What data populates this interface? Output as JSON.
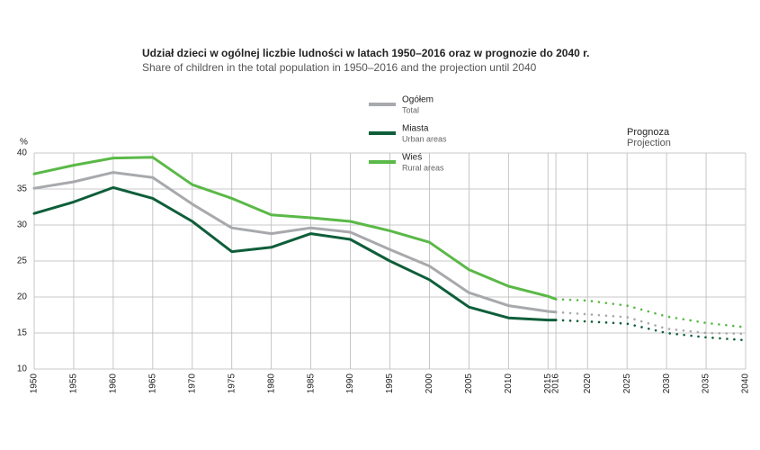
{
  "chart_data": {
    "type": "line",
    "title": "Udział dzieci w ogólnej liczbie ludności w latach 1950–2016 oraz w prognozie do 2040 r.",
    "subtitle": "Share of children in the total population in 1950–2016 and the projection until 2040",
    "y_unit": "%",
    "annotation": {
      "text": "Prognoza",
      "text_en": "Projection"
    },
    "x": [
      1950,
      1955,
      1960,
      1965,
      1970,
      1975,
      1980,
      1985,
      1990,
      1995,
      2000,
      2005,
      2010,
      2015,
      2016,
      2020,
      2025,
      2030,
      2035,
      2040
    ],
    "series": [
      {
        "name": "Ogółem",
        "name_en": "Total",
        "color": "#a7a9ac",
        "style": "solid",
        "values": [
          35.1,
          36.0,
          37.3,
          36.6,
          32.9,
          29.6,
          28.8,
          29.6,
          29.0,
          26.6,
          24.3,
          20.6,
          18.8,
          18.0,
          17.9,
          null,
          null,
          null,
          null,
          null
        ]
      },
      {
        "name": "Miasta",
        "name_en": "Urban areas",
        "color": "#0e5e3a",
        "style": "solid",
        "values": [
          31.6,
          33.2,
          35.2,
          33.7,
          30.5,
          26.3,
          26.9,
          28.8,
          28.0,
          25.0,
          22.4,
          18.6,
          17.1,
          16.8,
          16.8,
          null,
          null,
          null,
          null,
          null
        ]
      },
      {
        "name": "Wieś",
        "name_en": "Rural areas",
        "color": "#5ab947",
        "style": "solid",
        "values": [
          37.1,
          38.3,
          39.3,
          39.4,
          35.6,
          33.7,
          31.4,
          31.0,
          30.5,
          29.2,
          27.6,
          23.8,
          21.5,
          20.1,
          19.7,
          null,
          null,
          null,
          null,
          null
        ]
      },
      {
        "color": "#a7a9ac",
        "style": "dotted",
        "values": [
          null,
          null,
          null,
          null,
          null,
          null,
          null,
          null,
          null,
          null,
          null,
          null,
          null,
          null,
          17.9,
          17.6,
          17.2,
          15.6,
          15.0,
          14.9
        ]
      },
      {
        "color": "#0e5e3a",
        "style": "dotted",
        "values": [
          null,
          null,
          null,
          null,
          null,
          null,
          null,
          null,
          null,
          null,
          null,
          null,
          null,
          null,
          16.8,
          16.6,
          16.3,
          15.0,
          14.4,
          14.0
        ]
      },
      {
        "color": "#5ab947",
        "style": "dotted",
        "values": [
          null,
          null,
          null,
          null,
          null,
          null,
          null,
          null,
          null,
          null,
          null,
          null,
          null,
          null,
          19.7,
          19.5,
          18.8,
          17.3,
          16.4,
          15.8
        ]
      }
    ],
    "xlim": [
      1950,
      2040
    ],
    "xticks": [
      1950,
      1955,
      1960,
      1965,
      1970,
      1975,
      1980,
      1985,
      1990,
      1995,
      2000,
      2005,
      2010,
      2015,
      2016,
      2020,
      2025,
      2030,
      2035,
      2040
    ],
    "ylim": [
      10,
      40
    ],
    "yticks": [
      10,
      15,
      20,
      25,
      30,
      35,
      40
    ],
    "grid": true
  }
}
